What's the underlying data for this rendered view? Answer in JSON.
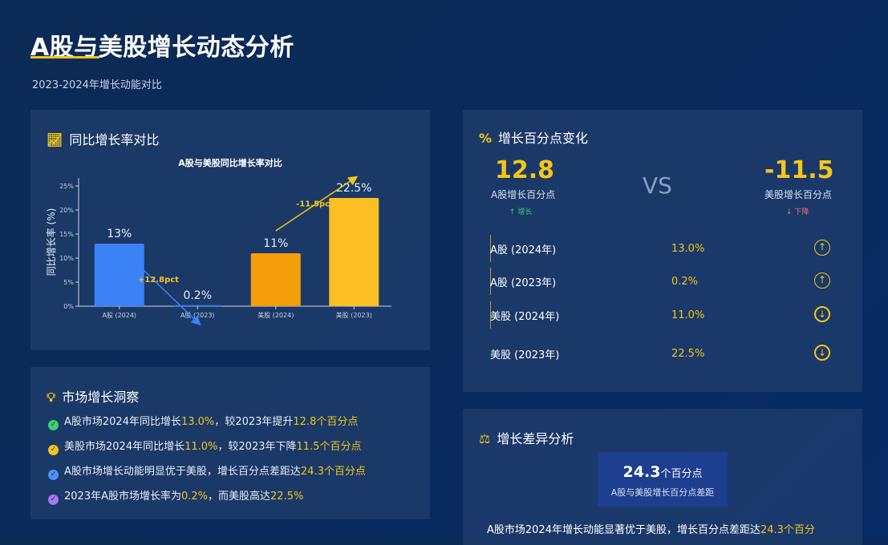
{
  "page": {
    "title": "A股与美股增长动态分析",
    "subtitle": "2023-2024年增长动能对比"
  },
  "panels": {
    "chart_title": "同比增长率对比",
    "change_title": "增长百分点变化",
    "insight_title": "市场增长洞察",
    "diff_title": "增长差异分析"
  },
  "change": {
    "a_value": "12.8",
    "a_label": "A股增长百分点",
    "a_trend": "↑ 增长",
    "vs": "VS",
    "us_value": "-11.5",
    "us_label": "美股增长百分点",
    "us_trend": "↓ 下降",
    "rows": [
      {
        "label": "A股 (2024年)",
        "value": "13.0%",
        "icon": "↑"
      },
      {
        "label": "A股 (2023年)",
        "value": "0.2%",
        "icon": "↑"
      },
      {
        "label": "美股 (2024年)",
        "value": "11.0%",
        "icon": "↓"
      },
      {
        "label": "美股 (2023年)",
        "value": "22.5%",
        "icon": "↓"
      }
    ]
  },
  "insights": [
    {
      "pre": "A股市场2024年同比增长",
      "h1": "13.0%",
      "mid": "，较2023年提升",
      "h2": "12.8个百分点",
      "post": "",
      "color": "#3ecf6e"
    },
    {
      "pre": "美股市场2024年同比增长",
      "h1": "11.0%",
      "mid": "，较2023年下降",
      "h2": "11.5个百分点",
      "post": "",
      "color": "#f5c518"
    },
    {
      "pre": "A股市场增长动能明显优于美股，增长百分点差距达",
      "h1": "24.3个百分点",
      "mid": "",
      "h2": "",
      "post": "",
      "color": "#4f8ef7"
    },
    {
      "pre": "2023年A股市场增长率为",
      "h1": "0.2%",
      "mid": "，而美股高达",
      "h2": "22.5%",
      "post": "",
      "color": "#a877f0"
    }
  ],
  "diff": {
    "value": "24.3",
    "unit": "个百分点",
    "caption": "A股与美股增长百分点差距",
    "text_pre": "A股市场2024年增长动能显著优于美股，增长百分点差距达",
    "text_hl": "24.3个百分"
  },
  "chart_data": {
    "type": "bar",
    "title": "A股与美股同比增长率对比",
    "xlabel": "",
    "ylabel": "同比增长率 (%)",
    "categories": [
      "A股 (2024)",
      "A股 (2023)",
      "美股 (2024)",
      "美股 (2023)"
    ],
    "values": [
      13,
      0.2,
      11,
      22.5
    ],
    "value_labels": [
      "13%",
      "0.2%",
      "11%",
      "22.5%"
    ],
    "colors": [
      "#3b82f6",
      "#3b82f6",
      "#f59e0b",
      "#fbbf24"
    ],
    "yticks": [
      "0%",
      "5%",
      "10%",
      "15%",
      "20%",
      "25%"
    ],
    "ylim": [
      0,
      25
    ],
    "annotations": [
      {
        "text": "+12.8pct",
        "from": "A股 (2024)",
        "to": "A股 (2023)",
        "color": "#3b82f6"
      },
      {
        "text": "-11.5pct",
        "from": "美股 (2024)",
        "to": "美股 (2023)",
        "color": "#f5c518"
      }
    ],
    "grid": false,
    "legend": "none"
  }
}
